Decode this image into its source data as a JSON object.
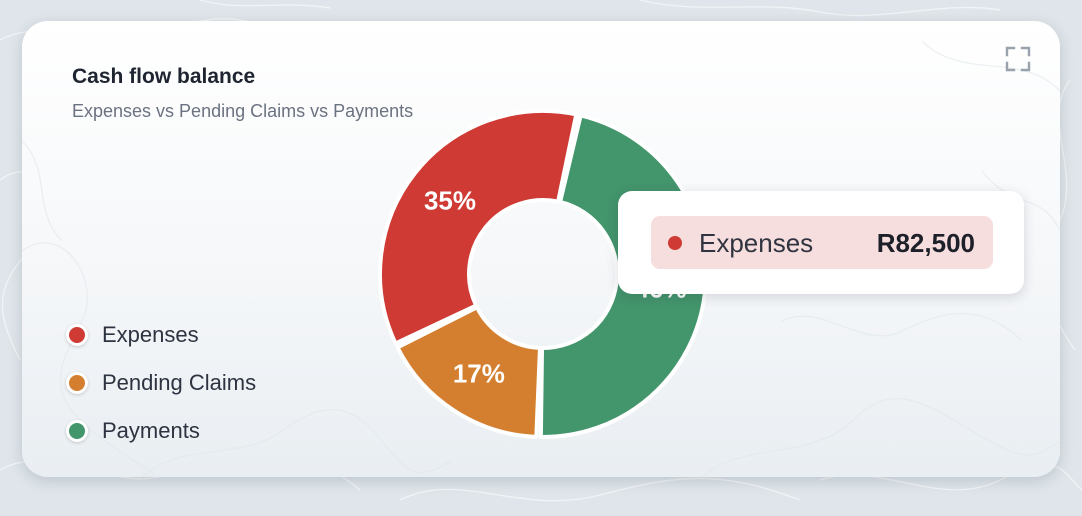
{
  "card": {
    "title": "Cash flow balance",
    "subtitle": "Expenses vs Pending Claims vs Payments",
    "expand_icon": "expand-icon"
  },
  "chart_data": {
    "type": "pie",
    "variant": "donut",
    "categories": [
      "Expenses",
      "Pending Claims",
      "Payments"
    ],
    "values": [
      35,
      17,
      46
    ],
    "value_labels": [
      "35%",
      "17%",
      "46%"
    ],
    "colors": [
      "#cf3b34",
      "#d47f2f",
      "#43956c"
    ],
    "legend_position": "left",
    "highlighted": "Expenses"
  },
  "legend": {
    "items": [
      {
        "label": "Expenses",
        "color": "#cf3b34"
      },
      {
        "label": "Pending Claims",
        "color": "#d47f2f"
      },
      {
        "label": "Payments",
        "color": "#43956c"
      }
    ]
  },
  "tooltip": {
    "label": "Expenses",
    "value": "R82,500",
    "color": "#cf3b34"
  }
}
